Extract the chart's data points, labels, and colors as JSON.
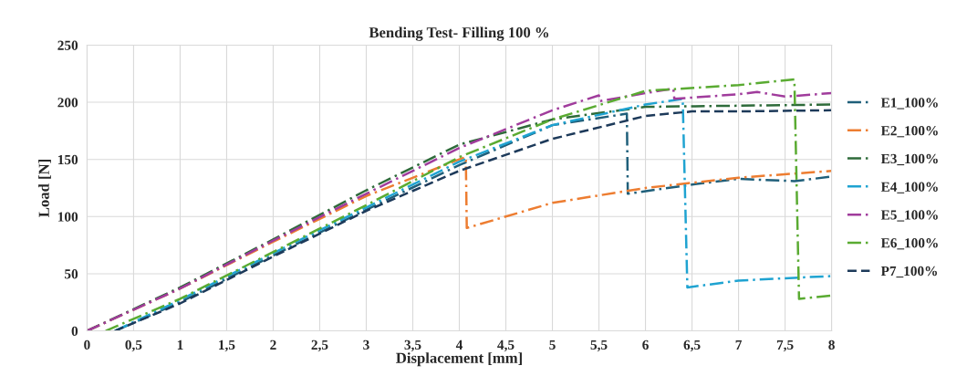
{
  "chart_data": {
    "type": "line",
    "title": "Bending Test- Filling 100 %",
    "xlabel": "Displacement [mm]",
    "ylabel": "Load [N]",
    "xlim": [
      0,
      8
    ],
    "ylim": [
      0,
      250
    ],
    "xticks": [
      0,
      {
        "value": 0.5,
        "label": "0,5"
      },
      1,
      {
        "value": 1.5,
        "label": "1,5"
      },
      2,
      {
        "value": 2.5,
        "label": "2,5"
      },
      3,
      {
        "value": 3.5,
        "label": "3,5"
      },
      4,
      {
        "value": 4.5,
        "label": "4,5"
      },
      5,
      {
        "value": 5.5,
        "label": "5,5"
      },
      6,
      {
        "value": 6.5,
        "label": "6,5"
      },
      7,
      {
        "value": 7.5,
        "label": "7,5"
      },
      8
    ],
    "yticks": [
      0,
      50,
      100,
      150,
      200,
      250
    ],
    "grid": true,
    "legend": "right",
    "marker": "none",
    "series": [
      {
        "name": "E1_100%",
        "color": "#1f5f7a",
        "line_style": "dashdot",
        "x": [
          0.3,
          1,
          2,
          3,
          4,
          5,
          5.8,
          5.81,
          6.5,
          7,
          7.6,
          8
        ],
        "values": [
          0,
          25,
          66,
          106,
          145,
          180,
          190,
          120,
          128,
          133,
          131,
          135
        ]
      },
      {
        "name": "E2_100%",
        "color": "#ed7d31",
        "line_style": "dashdot",
        "x": [
          0,
          1,
          2,
          3,
          4,
          4.07,
          4.08,
          5,
          6,
          7,
          8
        ],
        "values": [
          0,
          37,
          78,
          118,
          150,
          152,
          90,
          112,
          125,
          134,
          140
        ]
      },
      {
        "name": "E3_100%",
        "color": "#2e6b3a",
        "line_style": "dashdot",
        "x": [
          0,
          1,
          2,
          3,
          4,
          5,
          6,
          7,
          8
        ],
        "values": [
          0,
          38,
          80,
          123,
          163,
          185,
          196,
          197,
          198
        ]
      },
      {
        "name": "E4_100%",
        "color": "#1fa3d1",
        "line_style": "dashdot",
        "x": [
          0.3,
          1,
          2,
          3,
          4,
          5,
          6,
          6.4,
          6.45,
          7,
          8
        ],
        "values": [
          0,
          27,
          68,
          108,
          148,
          180,
          198,
          203,
          38,
          44,
          48
        ]
      },
      {
        "name": "E5_100%",
        "color": "#a03c9c",
        "line_style": "dashdot",
        "x": [
          0,
          1,
          2,
          3,
          4,
          5,
          5.5,
          5.51,
          6,
          6.3,
          6.31,
          7,
          7.2,
          7.5,
          8
        ],
        "values": [
          0,
          37,
          79,
          120,
          160,
          193,
          206,
          201,
          208,
          212,
          203,
          207,
          209,
          205,
          208
        ]
      },
      {
        "name": "E6_100%",
        "color": "#5aab32",
        "line_style": "dashdot",
        "x": [
          0.2,
          1,
          2,
          3,
          4,
          5,
          6,
          7,
          7.6,
          7.65,
          8
        ],
        "values": [
          0,
          28,
          69,
          110,
          152,
          185,
          210,
          215,
          220,
          28,
          31
        ]
      },
      {
        "name": "P7_100%",
        "color": "#1d3a5a",
        "line_style": "dashed",
        "x": [
          0.3,
          1,
          2,
          3,
          4,
          5,
          6,
          6.5,
          7,
          8
        ],
        "values": [
          0,
          24,
          65,
          105,
          140,
          168,
          188,
          192,
          192,
          193
        ]
      }
    ]
  }
}
